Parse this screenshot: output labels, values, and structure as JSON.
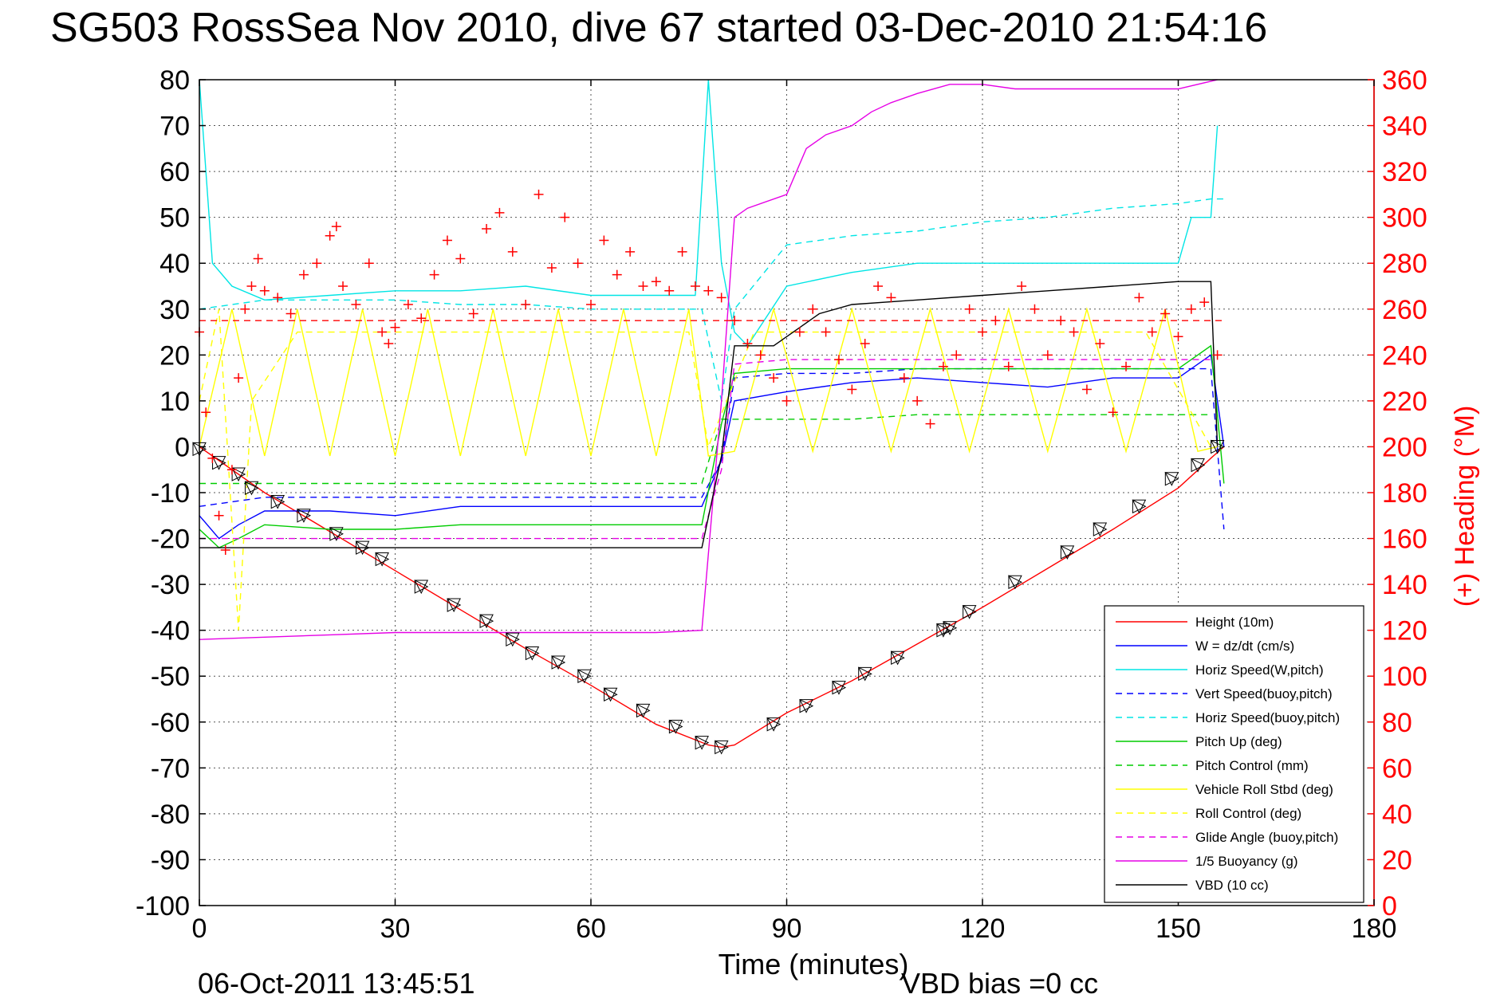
{
  "chart_data": {
    "type": "line",
    "title": "SG503 RossSea Nov 2010, dive 67 started 03-Dec-2010 21:54:16",
    "xlabel": "Time (minutes)",
    "ylabel": "",
    "ylabel_right": "(+) Heading (°M)",
    "xlim": [
      0,
      180
    ],
    "ylim": [
      -100,
      80
    ],
    "ylim_right": [
      0,
      360
    ],
    "x_ticks": [
      "0",
      "30",
      "60",
      "90",
      "120",
      "150",
      "180"
    ],
    "y_ticks": [
      "80",
      "70",
      "60",
      "50",
      "40",
      "30",
      "20",
      "10",
      "0",
      "-10",
      "-20",
      "-30",
      "-40",
      "-50",
      "-60",
      "-70",
      "-80",
      "-90",
      "-100"
    ],
    "y_ticks_right": [
      "360",
      "340",
      "320",
      "300",
      "280",
      "260",
      "240",
      "220",
      "200",
      "180",
      "160",
      "140",
      "120",
      "100",
      "80",
      "60",
      "40",
      "20",
      "0"
    ],
    "grid": true,
    "legend_position": "bottom-right",
    "footer_left": "06-Oct-2011 13:45:51",
    "footer_right": "VBD bias =0 cc",
    "series": [
      {
        "name": "Height (10m)",
        "color": "#ff0000",
        "style": "solid",
        "x": [
          0,
          10,
          20,
          30,
          40,
          50,
          60,
          70,
          78,
          80,
          82,
          90,
          100,
          110,
          120,
          130,
          140,
          150,
          155,
          157
        ],
        "y": [
          0,
          -10,
          -18.5,
          -27,
          -35.5,
          -44,
          -52,
          -60.5,
          -65,
          -65.5,
          -65,
          -58,
          -51,
          -43,
          -35,
          -26.5,
          -18,
          -9,
          -2.5,
          0
        ]
      },
      {
        "name": "W = dz/dt (cm/s)",
        "color": "#0000ff",
        "style": "solid",
        "x": [
          0,
          3,
          6,
          10,
          20,
          30,
          40,
          50,
          60,
          70,
          77,
          80,
          82,
          90,
          100,
          110,
          120,
          130,
          140,
          150,
          155,
          157
        ],
        "y": [
          -15,
          -20,
          -17,
          -14,
          -14,
          -15,
          -13,
          -13,
          -13,
          -13,
          -13,
          -3,
          10,
          12,
          14,
          15,
          14,
          13,
          15,
          15,
          20,
          0
        ]
      },
      {
        "name": "Horiz Speed(W,pitch)",
        "color": "#00e5e5",
        "style": "solid",
        "x": [
          0,
          2,
          5,
          10,
          20,
          30,
          40,
          50,
          60,
          70,
          76,
          78,
          80,
          82,
          84,
          90,
          100,
          110,
          120,
          130,
          140,
          150,
          152,
          155,
          156
        ],
        "y": [
          80,
          40,
          35,
          32,
          33,
          34,
          34,
          35,
          33,
          33,
          33,
          80,
          40,
          25,
          22,
          35,
          38,
          40,
          40,
          40,
          40,
          40,
          50,
          50,
          70
        ]
      },
      {
        "name": "Vert Speed(buoy,pitch)",
        "color": "#0000ff",
        "style": "dashed",
        "x": [
          0,
          10,
          20,
          30,
          40,
          50,
          60,
          70,
          77,
          80,
          82,
          90,
          100,
          110,
          120,
          130,
          140,
          150,
          155,
          157
        ],
        "y": [
          -13,
          -11,
          -11,
          -11,
          -11,
          -11,
          -11,
          -11,
          -11,
          -3,
          15,
          16,
          16,
          17,
          17,
          17,
          17,
          17,
          17,
          -18
        ]
      },
      {
        "name": "Horiz Speed(buoy,pitch)",
        "color": "#00e5e5",
        "style": "dashed",
        "x": [
          0,
          10,
          20,
          30,
          40,
          50,
          60,
          70,
          77,
          80,
          82,
          90,
          100,
          110,
          120,
          130,
          140,
          150,
          155,
          157
        ],
        "y": [
          30,
          32,
          32,
          32,
          31,
          31,
          30,
          30,
          30,
          10,
          30,
          44,
          46,
          47,
          49,
          50,
          52,
          53,
          54,
          54
        ]
      },
      {
        "name": "Pitch Up (deg)",
        "color": "#00cc00",
        "style": "solid",
        "x": [
          0,
          3,
          6,
          10,
          20,
          30,
          40,
          50,
          60,
          70,
          77,
          80,
          82,
          90,
          100,
          110,
          120,
          130,
          140,
          150,
          155,
          157
        ],
        "y": [
          -18,
          -22,
          -20,
          -17,
          -18,
          -18,
          -17,
          -17,
          -17,
          -17,
          -17,
          5,
          16,
          17,
          17,
          17,
          17,
          17,
          17,
          17,
          22,
          -8
        ]
      },
      {
        "name": "Pitch Control (mm)",
        "color": "#00cc00",
        "style": "dashed",
        "x": [
          0,
          10,
          20,
          30,
          40,
          50,
          60,
          70,
          77,
          80,
          82,
          90,
          100,
          110,
          120,
          130,
          140,
          150,
          155
        ],
        "y": [
          -8,
          -8,
          -8,
          -8,
          -8,
          -8,
          -8,
          -8,
          -8,
          6,
          6,
          6,
          6,
          7,
          7,
          7,
          7,
          7,
          7
        ]
      },
      {
        "name": "Vehicle Roll Stbd (deg)",
        "color": "#ffff00",
        "style": "solid",
        "x": [
          0,
          5,
          10,
          15,
          20,
          25,
          30,
          35,
          40,
          45,
          50,
          55,
          60,
          65,
          70,
          75,
          78,
          82,
          88,
          94,
          100,
          106,
          112,
          118,
          124,
          130,
          136,
          142,
          148,
          153,
          156
        ],
        "y": [
          0,
          30,
          -2,
          30,
          -2,
          30,
          -2,
          30,
          -2,
          30,
          -2,
          30,
          -2,
          30,
          -2,
          30,
          -2,
          -1,
          30,
          -1,
          30,
          -1,
          30,
          -1,
          30,
          -1,
          30,
          -1,
          30,
          -1,
          0
        ]
      },
      {
        "name": "Roll Control (deg)",
        "color": "#ffff00",
        "style": "dashed",
        "x": [
          0,
          3,
          6,
          8,
          15,
          25,
          35,
          45,
          55,
          65,
          75,
          78,
          85,
          95,
          105,
          115,
          125,
          135,
          145,
          155
        ],
        "y": [
          10,
          30,
          -40,
          10,
          25,
          25,
          25,
          25,
          25,
          25,
          25,
          0,
          25,
          25,
          25,
          25,
          25,
          25,
          25,
          0
        ]
      },
      {
        "name": "Glide Angle (buoy,pitch)",
        "color": "#e600e6",
        "style": "dashed",
        "x": [
          0,
          10,
          20,
          30,
          40,
          50,
          60,
          70,
          77,
          80,
          82,
          90,
          100,
          110,
          120,
          130,
          140,
          150,
          155
        ],
        "y": [
          -20,
          -20,
          -20,
          -20,
          -20,
          -20,
          -20,
          -20,
          -20,
          -5,
          18,
          19,
          19,
          19,
          19,
          19,
          19,
          19,
          19
        ]
      },
      {
        "name": "1/5 Buoyancy (g)",
        "color": "#e600e6",
        "style": "solid",
        "x": [
          0,
          10,
          20,
          30,
          40,
          50,
          60,
          70,
          77,
          80,
          82,
          84,
          90,
          93,
          96,
          100,
          103,
          106,
          110,
          115,
          120,
          125,
          130,
          140,
          150,
          156
        ],
        "y": [
          -42,
          -41.5,
          -41,
          -40.5,
          -40.5,
          -40.5,
          -40.5,
          -40.5,
          -40,
          10,
          50,
          52,
          55,
          65,
          68,
          70,
          73,
          75,
          77,
          79,
          79,
          78,
          78,
          78,
          78,
          80
        ]
      },
      {
        "name": "VBD (10 cc)",
        "color": "#000000",
        "style": "solid",
        "x": [
          0,
          10,
          20,
          30,
          40,
          50,
          60,
          70,
          77,
          80,
          82,
          88,
          92,
          95,
          100,
          110,
          120,
          130,
          140,
          150,
          155,
          156
        ],
        "y": [
          -22,
          -22,
          -22,
          -22,
          -22,
          -22,
          -22,
          -22,
          -22,
          -2,
          22,
          22,
          26,
          29,
          31,
          32,
          33,
          34,
          35,
          36,
          36,
          0
        ]
      },
      {
        "name": "",
        "color": "#ff0000",
        "style": "dashed",
        "axis": "right",
        "x": [
          0,
          157
        ],
        "y": [
          255,
          255
        ]
      }
    ],
    "heading_points": {
      "color": "#ff0000",
      "marker": "+",
      "axis": "right",
      "x": [
        0,
        1,
        2,
        3,
        4,
        5,
        6,
        7,
        8,
        9,
        10,
        12,
        14,
        16,
        18,
        20,
        21,
        22,
        24,
        26,
        28,
        29,
        30,
        32,
        34,
        36,
        38,
        40,
        42,
        44,
        46,
        48,
        50,
        52,
        54,
        56,
        58,
        60,
        62,
        64,
        66,
        68,
        70,
        72,
        74,
        76,
        78,
        80,
        82,
        84,
        86,
        88,
        90,
        92,
        94,
        96,
        98,
        100,
        102,
        104,
        106,
        108,
        110,
        112,
        114,
        116,
        118,
        120,
        122,
        124,
        126,
        128,
        130,
        132,
        134,
        136,
        138,
        140,
        142,
        144,
        146,
        148,
        150,
        152,
        154,
        156
      ],
      "y": [
        250,
        215,
        195,
        170,
        155,
        190,
        230,
        260,
        270,
        282,
        268,
        265,
        258,
        275,
        280,
        292,
        296,
        270,
        262,
        280,
        250,
        245,
        252,
        262,
        256,
        275,
        290,
        282,
        258,
        295,
        302,
        285,
        262,
        310,
        278,
        300,
        280,
        262,
        290,
        275,
        285,
        270,
        272,
        268,
        285,
        270,
        268,
        265,
        255,
        245,
        240,
        230,
        220,
        250,
        260,
        250,
        238,
        225,
        245,
        270,
        265,
        230,
        220,
        210,
        235,
        240,
        260,
        250,
        255,
        235,
        270,
        260,
        240,
        255,
        250,
        225,
        245,
        215,
        235,
        265,
        250,
        258,
        248,
        260,
        263,
        240
      ]
    },
    "triangle_markers": {
      "color": "#000000",
      "x": [
        0,
        3,
        6,
        8,
        12,
        16,
        21,
        25,
        28,
        34,
        39,
        44,
        48,
        51,
        55,
        59,
        63,
        68,
        73,
        77,
        80,
        88,
        93,
        98,
        102,
        107,
        114,
        115,
        118,
        125,
        133,
        138,
        144,
        149,
        153,
        156
      ],
      "y": [
        -0.5,
        -3.5,
        -6,
        -9,
        -12,
        -15,
        -19,
        -22,
        -24.5,
        -30.5,
        -34.5,
        -38,
        -42,
        -45,
        -47,
        -50,
        -54,
        -57.5,
        -61,
        -64.5,
        -65.5,
        -60.5,
        -56.5,
        -52.5,
        -49.5,
        -46,
        -40,
        -39.5,
        -36,
        -29.5,
        -23,
        -18,
        -13,
        -7,
        -4,
        0
      ]
    }
  }
}
